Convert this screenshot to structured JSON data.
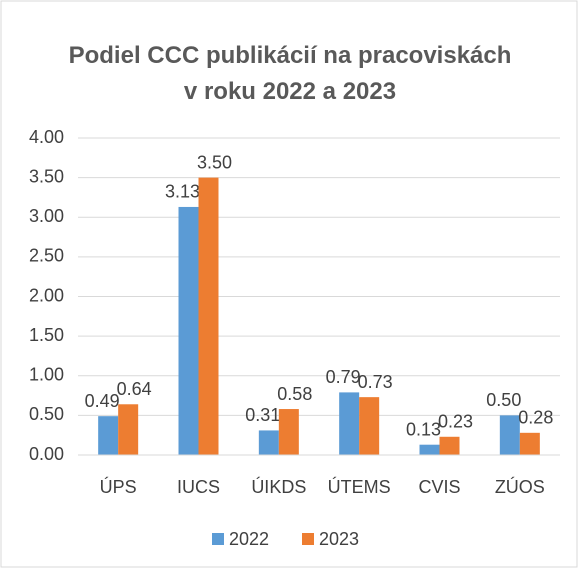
{
  "chart_data": {
    "type": "bar",
    "title": "Podiel CCC publikácií na pracoviskách\nv roku 2022 a 2023",
    "categories": [
      "ÚPS",
      "IUCS",
      "ÚIKDS",
      "ÚTEMS",
      "CVIS",
      "ZÚOS"
    ],
    "series": [
      {
        "name": "2022",
        "color": "#5b9bd5",
        "values": [
          0.49,
          3.13,
          0.31,
          0.79,
          0.13,
          0.5
        ],
        "value_labels": [
          "0.49",
          "3.13",
          "0.31",
          "0.79",
          "0.13",
          "0.50"
        ]
      },
      {
        "name": "2023",
        "color": "#ed7d31",
        "values": [
          0.64,
          3.5,
          0.58,
          0.73,
          0.23,
          0.28
        ],
        "value_labels": [
          "0.64",
          "3.50",
          "0.58",
          "0.73",
          "0.23",
          "0.28"
        ]
      }
    ],
    "ylim": [
      0,
      4
    ],
    "yticks": [
      {
        "value": 0,
        "label": "0.00"
      },
      {
        "value": 0.5,
        "label": "0.50"
      },
      {
        "value": 1,
        "label": "1.00"
      },
      {
        "value": 1.5,
        "label": "1.50"
      },
      {
        "value": 2,
        "label": "2.00"
      },
      {
        "value": 2.5,
        "label": "2.50"
      },
      {
        "value": 3,
        "label": "3.00"
      },
      {
        "value": 3.5,
        "label": "3.50"
      },
      {
        "value": 4,
        "label": "4.00"
      }
    ],
    "grid": true,
    "legend": "bottom"
  }
}
